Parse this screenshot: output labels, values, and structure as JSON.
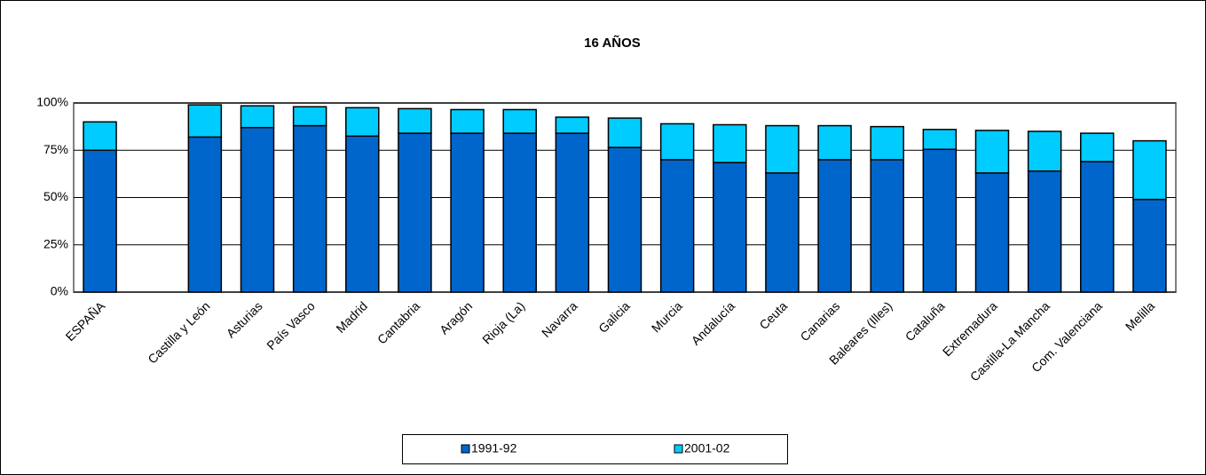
{
  "chart_data": {
    "type": "stacked_bar",
    "title": "16 AÑOS",
    "categories": [
      "ESPAÑA",
      null,
      "Castilla y León",
      "Asturias",
      "País Vasco",
      "Madrid",
      "Cantabria",
      "Aragón",
      "Rioja (La)",
      "Navarra",
      "Galicia",
      "Murcia",
      "Andalucía",
      "Ceuta",
      "Canarias",
      "Baleares (Illes)",
      "Cataluña",
      "Extremadura",
      "Castilla-La Mancha",
      "Com. Valenciana",
      "Melilla"
    ],
    "series": [
      {
        "name": "1991-92",
        "color": "#0066cc",
        "values": [
          75,
          null,
          82,
          87,
          88,
          82.5,
          84,
          84,
          84,
          84,
          76.5,
          70,
          68.5,
          63,
          70,
          70,
          75.5,
          63,
          64,
          69,
          49
        ]
      },
      {
        "name": "2001-02",
        "color": "#00ccff",
        "values": [
          15,
          null,
          17,
          11.5,
          10,
          15,
          13,
          12.5,
          12.5,
          8.5,
          15.5,
          19,
          20,
          25,
          18,
          17.5,
          10.5,
          22.5,
          21,
          15,
          31
        ]
      }
    ],
    "ylim": [
      0,
      100
    ],
    "yticks": [
      {
        "value": 0,
        "label": "0%"
      },
      {
        "value": 25,
        "label": "25%"
      },
      {
        "value": 50,
        "label": "50%"
      },
      {
        "value": 75,
        "label": "75%"
      },
      {
        "value": 100,
        "label": "100%"
      }
    ],
    "grid": true,
    "legend": "bottom"
  }
}
